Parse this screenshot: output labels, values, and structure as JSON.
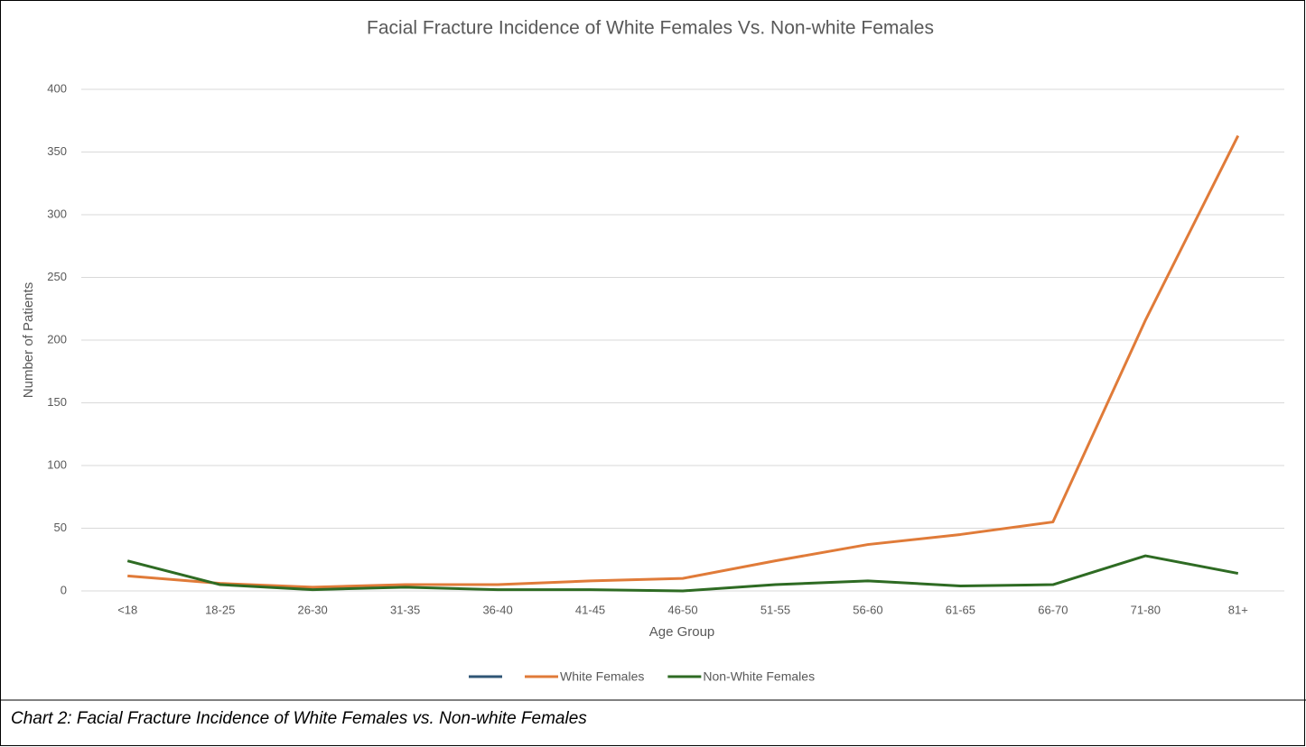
{
  "chart_data": {
    "type": "line",
    "title": "Facial Fracture Incidence of White Females Vs. Non-white Females",
    "xlabel": "Age Group",
    "ylabel": "Number of Patients",
    "categories": [
      "<18",
      "18-25",
      "26-30",
      "31-35",
      "36-40",
      "41-45",
      "46-50",
      "51-55",
      "56-60",
      "61-65",
      "66-70",
      "71-80",
      "81+"
    ],
    "series": [
      {
        "name": "White Females",
        "color": "#e07b39",
        "values": [
          12,
          6,
          3,
          5,
          5,
          8,
          10,
          24,
          37,
          45,
          55,
          216,
          363
        ]
      },
      {
        "name": "Non-White Females",
        "color": "#2e6b23",
        "values": [
          24,
          5,
          1,
          3,
          1,
          1,
          0,
          5,
          8,
          4,
          5,
          28,
          14
        ]
      }
    ],
    "ylim": [
      0,
      400
    ],
    "yticks": [
      0,
      50,
      100,
      150,
      200,
      250,
      300,
      350,
      400
    ],
    "grid": true,
    "legend": "bottom"
  },
  "caption": "Chart 2: Facial Fracture Incidence of White Females vs. Non-white Females"
}
